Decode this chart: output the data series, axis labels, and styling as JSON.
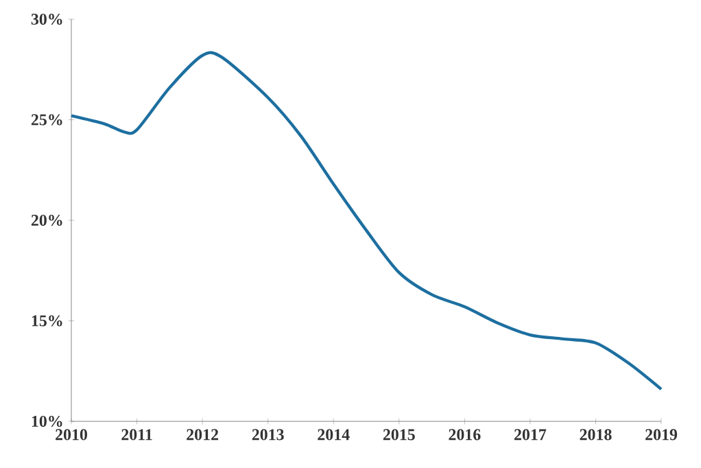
{
  "chart_data": {
    "type": "line",
    "x": [
      2010,
      2010.5,
      2010.8,
      2011,
      2011.5,
      2012,
      2012.3,
      2013,
      2013.5,
      2014,
      2014.5,
      2015,
      2015.5,
      2016,
      2016.5,
      2017,
      2017.5,
      2018,
      2018.5,
      2019
    ],
    "series": [
      {
        "color": "#1d6fa0",
        "values": [
          25.2,
          24.8,
          24.4,
          24.5,
          26.6,
          28.2,
          28.1,
          26.1,
          24.2,
          21.8,
          19.5,
          17.4,
          16.3,
          15.7,
          14.9,
          14.3,
          14.1,
          13.9,
          12.9,
          11.6
        ]
      }
    ],
    "xlim": [
      2010,
      2019
    ],
    "ylim": [
      10,
      30
    ],
    "xticks": [
      2010,
      2011,
      2012,
      2013,
      2014,
      2015,
      2016,
      2017,
      2018,
      2019
    ],
    "yticks": [
      {
        "value": 10,
        "label": "10%"
      },
      {
        "value": 15,
        "label": "15%"
      },
      {
        "value": 20,
        "label": "20%"
      },
      {
        "value": 25,
        "label": "25%"
      },
      {
        "value": 30,
        "label": "30%"
      }
    ],
    "grid": false,
    "marker": "none",
    "line_style": "solid"
  }
}
